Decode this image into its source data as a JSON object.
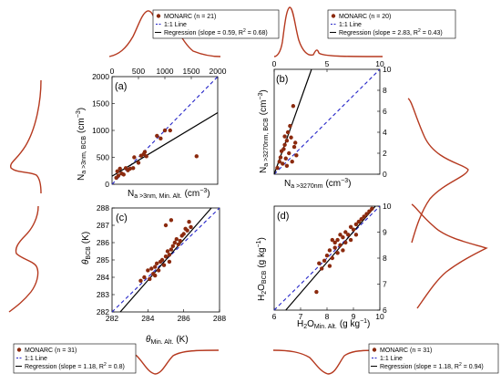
{
  "colors": {
    "data": "#8B2A0E",
    "density": "#B5391F",
    "one_to_one": "#2424C8",
    "regression": "#000000",
    "axis": "#000000"
  },
  "chart_data": [
    {
      "panel": "(a)",
      "type": "scatter",
      "xlabel_main": "N",
      "xlabel_sub": "a >3nm, Min. Alt.",
      "xlabel_unit": "(cm",
      "xlabel_sup": "−3",
      "xlabel_close": ")",
      "ylabel_main": "N",
      "ylabel_sub": "a >3nm, BCB",
      "ylabel_unit": "(cm",
      "ylabel_sup": "−3",
      "ylabel_close": ")",
      "xlim": [
        0,
        2000
      ],
      "ylim": [
        0,
        2000
      ],
      "xticks": [
        "0",
        "500",
        "1000",
        "1500",
        "2000"
      ],
      "yticks": [
        "0",
        "500",
        "1000",
        "1500",
        "2000"
      ],
      "x_ticks_on_top": true,
      "points": [
        [
          80,
          120
        ],
        [
          100,
          240
        ],
        [
          120,
          160
        ],
        [
          150,
          290
        ],
        [
          180,
          200
        ],
        [
          220,
          180
        ],
        [
          260,
          300
        ],
        [
          300,
          260
        ],
        [
          340,
          290
        ],
        [
          400,
          300
        ],
        [
          420,
          500
        ],
        [
          500,
          400
        ],
        [
          550,
          530
        ],
        [
          600,
          560
        ],
        [
          620,
          600
        ],
        [
          650,
          520
        ],
        [
          850,
          900
        ],
        [
          920,
          850
        ],
        [
          1000,
          1000
        ],
        [
          1100,
          1000
        ],
        [
          1600,
          520
        ]
      ],
      "regression": {
        "slope": 0.59,
        "intercept": 150
      },
      "legend": {
        "items": [
          "MONARC (n = 21)",
          "1:1 Line",
          "Regression (slope = 0.59, R"
        ],
        "r2_sup": "2",
        "r2_tail": " = 0.68)"
      }
    },
    {
      "panel": "(b)",
      "type": "scatter",
      "xlabel_main": "N",
      "xlabel_sub": "a >3270nm",
      "xlabel_unit": "(cm",
      "xlabel_sup": "−3",
      "xlabel_close": ")",
      "ylabel_main": "N",
      "ylabel_sub": "a >3270nm, BCB",
      "ylabel_unit": "(cm",
      "ylabel_sup": "−3",
      "ylabel_close": ")",
      "xlim": [
        0,
        10
      ],
      "ylim": [
        0,
        10
      ],
      "xticks": [
        "0",
        "5",
        "10"
      ],
      "yticks": [
        "0",
        "2",
        "4",
        "6",
        "8",
        "10"
      ],
      "x_ticks_on_top": true,
      "points": [
        [
          0.3,
          0.6
        ],
        [
          0.5,
          1.2
        ],
        [
          0.6,
          1.6
        ],
        [
          0.7,
          2.2
        ],
        [
          0.8,
          1.0
        ],
        [
          0.9,
          2.4
        ],
        [
          1.0,
          2.8
        ],
        [
          1.0,
          3.6
        ],
        [
          1.1,
          1.5
        ],
        [
          1.2,
          3.2
        ],
        [
          1.3,
          4.0
        ],
        [
          1.4,
          2.0
        ],
        [
          1.5,
          4.6
        ],
        [
          1.6,
          3.5
        ],
        [
          1.7,
          1.2
        ],
        [
          1.8,
          6.5
        ],
        [
          1.9,
          2.6
        ],
        [
          2.0,
          3.0
        ],
        [
          2.1,
          1.8
        ],
        [
          1.2,
          0.8
        ]
      ],
      "regression": {
        "slope": 2.83,
        "intercept": 0
      },
      "legend": {
        "items": [
          "MONARC (n = 20)",
          "1:1 Line",
          "Regression (slope = 2.83, R"
        ],
        "r2_sup": "2",
        "r2_tail": " = 0.43)"
      }
    },
    {
      "panel": "(c)",
      "type": "scatter",
      "xlabel_main": "θ",
      "xlabel_sub": "Min. Alt.",
      "xlabel_unit": "(K)",
      "xlabel_sup": "",
      "xlabel_close": "",
      "ylabel_main": "θ",
      "ylabel_sub": "BCB",
      "ylabel_unit": "(K)",
      "ylabel_sup": "",
      "ylabel_close": "",
      "xlim": [
        282,
        288
      ],
      "ylim": [
        282,
        288
      ],
      "xticks": [
        "282",
        "284",
        "286",
        "288"
      ],
      "yticks": [
        "282",
        "283",
        "284",
        "285",
        "286",
        "287",
        "288"
      ],
      "x_ticks_on_top": false,
      "points": [
        [
          283.6,
          283.8
        ],
        [
          283.8,
          284.0
        ],
        [
          284.0,
          284.4
        ],
        [
          284.1,
          283.9
        ],
        [
          284.2,
          284.5
        ],
        [
          284.3,
          284.2
        ],
        [
          284.4,
          284.6
        ],
        [
          284.5,
          284.8
        ],
        [
          284.6,
          284.4
        ],
        [
          284.7,
          284.9
        ],
        [
          284.8,
          285.0
        ],
        [
          284.9,
          284.7
        ],
        [
          285.0,
          285.2
        ],
        [
          285.0,
          287.0
        ],
        [
          285.1,
          285.5
        ],
        [
          285.2,
          285.3
        ],
        [
          285.3,
          285.6
        ],
        [
          285.4,
          285.8
        ],
        [
          285.5,
          286.0
        ],
        [
          285.6,
          286.2
        ],
        [
          285.7,
          285.9
        ],
        [
          285.8,
          286.1
        ],
        [
          285.9,
          286.4
        ],
        [
          286.0,
          286.5
        ],
        [
          286.1,
          286.8
        ],
        [
          286.2,
          286.7
        ],
        [
          286.4,
          286.9
        ],
        [
          285.2,
          284.9
        ],
        [
          284.4,
          284.1
        ],
        [
          285.3,
          287.3
        ],
        [
          286.3,
          287.2
        ]
      ],
      "regression": {
        "slope": 1.18,
        "intercept": -51.3
      },
      "legend": {
        "items": [
          "MONARC (n = 31)",
          "1:1 Line",
          "Regression (slope = 1.18, R"
        ],
        "r2_sup": "2",
        "r2_tail": " = 0.8)"
      }
    },
    {
      "panel": "(d)",
      "type": "scatter",
      "xlabel_main": "H",
      "xlabel_sub2": "2",
      "xlabel_O": "O",
      "xlabel_sub": "Min. Alt.",
      "xlabel_unit": "(g kg",
      "xlabel_sup": "−1",
      "xlabel_close": ")",
      "ylabel_main": "H",
      "ylabel_sub2": "2",
      "ylabel_O": "O",
      "ylabel_sub": "BCB",
      "ylabel_unit": "(g kg",
      "ylabel_sup": "−1",
      "ylabel_close": ")",
      "xlim": [
        6,
        10
      ],
      "ylim": [
        6,
        10
      ],
      "xticks": [
        "6",
        "7",
        "8",
        "9",
        "10"
      ],
      "yticks": [
        "6",
        "7",
        "8",
        "9",
        "10"
      ],
      "x_ticks_on_top": false,
      "points": [
        [
          7.6,
          6.7
        ],
        [
          7.7,
          7.8
        ],
        [
          7.8,
          7.6
        ],
        [
          7.9,
          7.9
        ],
        [
          8.0,
          8.1
        ],
        [
          8.1,
          7.7
        ],
        [
          8.1,
          8.3
        ],
        [
          8.2,
          8.0
        ],
        [
          8.3,
          8.4
        ],
        [
          8.3,
          8.6
        ],
        [
          8.4,
          8.2
        ],
        [
          8.4,
          8.7
        ],
        [
          8.5,
          8.5
        ],
        [
          8.5,
          8.9
        ],
        [
          8.6,
          8.3
        ],
        [
          8.6,
          8.8
        ],
        [
          8.7,
          8.6
        ],
        [
          8.7,
          9.0
        ],
        [
          8.8,
          8.9
        ],
        [
          8.9,
          9.2
        ],
        [
          8.9,
          8.7
        ],
        [
          9.0,
          9.1
        ],
        [
          9.1,
          9.3
        ],
        [
          9.1,
          8.9
        ],
        [
          9.2,
          9.4
        ],
        [
          9.3,
          9.5
        ],
        [
          9.4,
          9.6
        ],
        [
          9.5,
          9.7
        ],
        [
          9.6,
          9.8
        ],
        [
          9.7,
          9.9
        ],
        [
          8.2,
          8.7
        ]
      ],
      "regression": {
        "slope": 1.18,
        "intercept": -1.6
      },
      "legend": {
        "items": [
          "MONARC (n = 31)",
          "1:1 Line",
          "Regression (slope = 1.18, R"
        ],
        "r2_sup": "2",
        "r2_tail": " = 0.94)"
      }
    }
  ]
}
